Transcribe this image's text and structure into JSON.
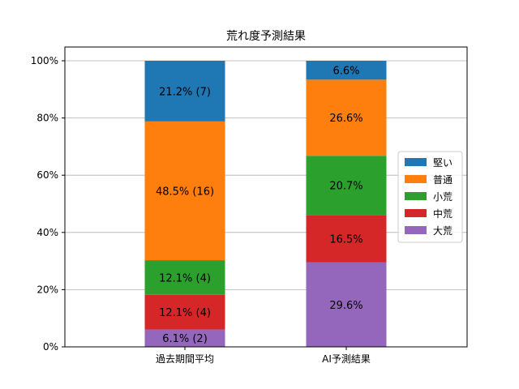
{
  "chart_data": {
    "type": "bar",
    "stacked": true,
    "title": "荒れ度予測結果",
    "xlabel": "",
    "ylabel": "",
    "ylim": [
      0,
      100
    ],
    "yticks": [
      "0%",
      "20%",
      "40%",
      "60%",
      "80%",
      "100%"
    ],
    "categories": [
      "過去期間平均",
      "AI予測結果"
    ],
    "grid": "horizontal",
    "legend_position": "center-right",
    "series": [
      {
        "name": "大荒",
        "color": "#9467bd",
        "values": [
          6.1,
          29.6
        ],
        "labels": [
          "6.1% (2)",
          "29.6%"
        ]
      },
      {
        "name": "中荒",
        "color": "#d62728",
        "values": [
          12.1,
          16.5
        ],
        "labels": [
          "12.1% (4)",
          "16.5%"
        ]
      },
      {
        "name": "小荒",
        "color": "#2ca02c",
        "values": [
          12.1,
          20.7
        ],
        "labels": [
          "12.1% (4)",
          "20.7%"
        ]
      },
      {
        "name": "普通",
        "color": "#ff7f0e",
        "values": [
          48.5,
          26.6
        ],
        "labels": [
          "48.5% (16)",
          "26.6%"
        ]
      },
      {
        "name": "堅い",
        "color": "#1f77b4",
        "values": [
          21.2,
          6.6
        ],
        "labels": [
          "21.2% (7)",
          "6.6%"
        ]
      }
    ],
    "legend_order": [
      "堅い",
      "普通",
      "小荒",
      "中荒",
      "大荒"
    ]
  }
}
